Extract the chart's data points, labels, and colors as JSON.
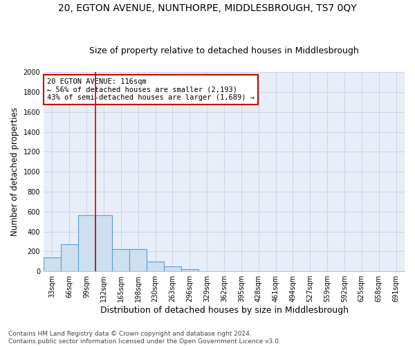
{
  "title": "20, EGTON AVENUE, NUNTHORPE, MIDDLESBROUGH, TS7 0QY",
  "subtitle": "Size of property relative to detached houses in Middlesbrough",
  "xlabel": "Distribution of detached houses by size in Middlesbrough",
  "ylabel": "Number of detached properties",
  "footer_line1": "Contains HM Land Registry data © Crown copyright and database right 2024.",
  "footer_line2": "Contains public sector information licensed under the Open Government Licence v3.0.",
  "bin_labels": [
    "33sqm",
    "66sqm",
    "99sqm",
    "132sqm",
    "165sqm",
    "198sqm",
    "230sqm",
    "263sqm",
    "296sqm",
    "329sqm",
    "362sqm",
    "395sqm",
    "428sqm",
    "461sqm",
    "494sqm",
    "527sqm",
    "559sqm",
    "592sqm",
    "625sqm",
    "658sqm",
    "691sqm"
  ],
  "bar_values": [
    140,
    270,
    565,
    565,
    220,
    220,
    98,
    50,
    20,
    0,
    0,
    0,
    0,
    0,
    0,
    0,
    0,
    0,
    0,
    0,
    0
  ],
  "bar_color": "#cce0f0",
  "bar_edgecolor": "#5b9bd5",
  "bar_linewidth": 0.8,
  "vline_x": 2.5,
  "vline_color": "#cc0000",
  "vline_linewidth": 1.2,
  "annotation_text": "20 EGTON AVENUE: 116sqm\n← 56% of detached houses are smaller (2,193)\n43% of semi-detached houses are larger (1,689) →",
  "annotation_box_edgecolor": "#cc0000",
  "annotation_box_facecolor": "white",
  "ylim": [
    0,
    2000
  ],
  "yticks": [
    0,
    200,
    400,
    600,
    800,
    1000,
    1200,
    1400,
    1600,
    1800,
    2000
  ],
  "grid_color": "#c8d4e8",
  "axes_facecolor": "#e8eef8",
  "title_fontsize": 10,
  "subtitle_fontsize": 9,
  "xlabel_fontsize": 9,
  "ylabel_fontsize": 8.5,
  "tick_fontsize": 7,
  "annotation_fontsize": 7.5,
  "footer_fontsize": 6.5
}
